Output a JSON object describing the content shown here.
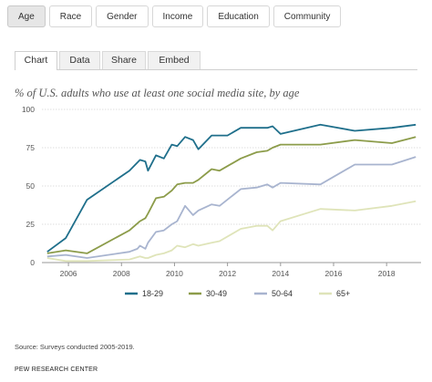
{
  "filters": {
    "tabs": [
      {
        "label": "Age",
        "active": true
      },
      {
        "label": "Race",
        "active": false
      },
      {
        "label": "Gender",
        "active": false
      },
      {
        "label": "Income",
        "active": false
      },
      {
        "label": "Education",
        "active": false
      },
      {
        "label": "Community",
        "active": false
      }
    ]
  },
  "views": {
    "tabs": [
      {
        "label": "Chart",
        "active": true
      },
      {
        "label": "Data",
        "active": false
      },
      {
        "label": "Share",
        "active": false
      },
      {
        "label": "Embed",
        "active": false
      }
    ]
  },
  "chart_data": {
    "type": "line",
    "title": "% of U.S. adults who use at least one social media site, by age",
    "xlabel": "",
    "ylabel": "",
    "xlim": [
      2005.0,
      2019.3
    ],
    "ylim": [
      0,
      100
    ],
    "x_ticks": [
      2006,
      2008,
      2010,
      2012,
      2014,
      2016,
      2018
    ],
    "y_ticks": [
      0,
      25,
      50,
      75,
      100
    ],
    "grid": {
      "horizontal": true,
      "vertical": false
    },
    "legend": "bottom",
    "series": [
      {
        "name": "18-29",
        "color": "#1f6f8b",
        "points": [
          [
            2005.2,
            7
          ],
          [
            2005.9,
            16
          ],
          [
            2006.7,
            41
          ],
          [
            2008.3,
            60
          ],
          [
            2008.7,
            67
          ],
          [
            2008.9,
            66
          ],
          [
            2009.0,
            60
          ],
          [
            2009.3,
            70
          ],
          [
            2009.6,
            68
          ],
          [
            2009.9,
            77
          ],
          [
            2010.1,
            76
          ],
          [
            2010.4,
            82
          ],
          [
            2010.7,
            80
          ],
          [
            2010.9,
            74
          ],
          [
            2011.4,
            83
          ],
          [
            2012.0,
            83
          ],
          [
            2012.5,
            88
          ],
          [
            2013.1,
            88
          ],
          [
            2013.5,
            88
          ],
          [
            2013.7,
            89
          ],
          [
            2014.0,
            84
          ],
          [
            2015.5,
            90
          ],
          [
            2016.8,
            86
          ],
          [
            2018.2,
            88
          ],
          [
            2019.1,
            90
          ]
        ]
      },
      {
        "name": "30-49",
        "color": "#8c9c4a",
        "points": [
          [
            2005.2,
            6
          ],
          [
            2005.9,
            8
          ],
          [
            2006.7,
            6
          ],
          [
            2008.3,
            21
          ],
          [
            2008.7,
            27
          ],
          [
            2008.9,
            29
          ],
          [
            2009.0,
            32
          ],
          [
            2009.3,
            42
          ],
          [
            2009.6,
            43
          ],
          [
            2009.9,
            47
          ],
          [
            2010.1,
            51
          ],
          [
            2010.4,
            52
          ],
          [
            2010.7,
            52
          ],
          [
            2010.9,
            54
          ],
          [
            2011.4,
            61
          ],
          [
            2011.7,
            60
          ],
          [
            2012.5,
            68
          ],
          [
            2013.1,
            72
          ],
          [
            2013.5,
            73
          ],
          [
            2013.7,
            75
          ],
          [
            2014.0,
            77
          ],
          [
            2015.5,
            77
          ],
          [
            2016.8,
            80
          ],
          [
            2018.2,
            78
          ],
          [
            2019.1,
            82
          ]
        ]
      },
      {
        "name": "50-64",
        "color": "#a8b4cf",
        "points": [
          [
            2005.2,
            4
          ],
          [
            2005.9,
            5
          ],
          [
            2006.7,
            3
          ],
          [
            2008.3,
            7
          ],
          [
            2008.6,
            9
          ],
          [
            2008.7,
            11
          ],
          [
            2008.9,
            9
          ],
          [
            2009.0,
            13
          ],
          [
            2009.3,
            20
          ],
          [
            2009.6,
            21
          ],
          [
            2009.9,
            25
          ],
          [
            2010.1,
            27
          ],
          [
            2010.4,
            37
          ],
          [
            2010.7,
            31
          ],
          [
            2010.9,
            34
          ],
          [
            2011.4,
            38
          ],
          [
            2011.7,
            37
          ],
          [
            2012.5,
            48
          ],
          [
            2013.1,
            49
          ],
          [
            2013.5,
            51
          ],
          [
            2013.7,
            49
          ],
          [
            2014.0,
            52
          ],
          [
            2015.5,
            51
          ],
          [
            2016.8,
            64
          ],
          [
            2018.2,
            64
          ],
          [
            2019.1,
            69
          ]
        ]
      },
      {
        "name": "65+",
        "color": "#dfe4b9",
        "points": [
          [
            2005.2,
            3
          ],
          [
            2005.9,
            1
          ],
          [
            2006.7,
            1
          ],
          [
            2008.3,
            2
          ],
          [
            2008.7,
            4
          ],
          [
            2008.9,
            3
          ],
          [
            2009.0,
            3
          ],
          [
            2009.3,
            5
          ],
          [
            2009.6,
            6
          ],
          [
            2009.9,
            8
          ],
          [
            2010.1,
            11
          ],
          [
            2010.4,
            10
          ],
          [
            2010.7,
            12
          ],
          [
            2010.9,
            11
          ],
          [
            2011.4,
            13
          ],
          [
            2011.7,
            14
          ],
          [
            2012.5,
            22
          ],
          [
            2013.1,
            24
          ],
          [
            2013.5,
            24
          ],
          [
            2013.7,
            21
          ],
          [
            2014.0,
            27
          ],
          [
            2015.5,
            35
          ],
          [
            2016.8,
            34
          ],
          [
            2018.2,
            37
          ],
          [
            2019.1,
            40
          ]
        ]
      }
    ]
  },
  "footer": {
    "source": "Source: Surveys conducted 2005-2019.",
    "credit": "PEW RESEARCH CENTER"
  }
}
